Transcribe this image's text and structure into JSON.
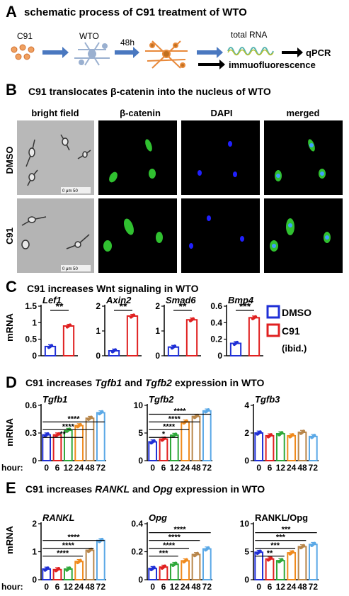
{
  "panelA": {
    "letter": "A",
    "title": "schematic process of C91 treatment of WTO",
    "c91": "C91",
    "wto": "WTO",
    "h48": "48h",
    "total_rna": "total RNA",
    "qpcr": "qPCR",
    "immuno": "immuofluorescence"
  },
  "panelB": {
    "letter": "B",
    "title_pre": "C91 translocates ",
    "title_beta": "β-catenin",
    "title_post": " into the nucleus of WTO",
    "cols": [
      "bright field",
      "β-catenin",
      "DAPI",
      "merged"
    ],
    "rows": [
      "DMSO",
      "C91"
    ],
    "scale": "0    μm    50"
  },
  "panelC": {
    "letter": "C",
    "title": "C91 increases Wnt signaling in WTO",
    "ylabel": "mRNA",
    "legend": [
      "DMSO",
      "C91",
      "(ibid.)"
    ]
  },
  "panelD": {
    "letter": "D",
    "title_pre": "C91 increases ",
    "g1": "Tgfb1",
    "and": " and ",
    "g2": "Tgfb2",
    "title_post": " expression in WTO",
    "ylabel": "mRNA",
    "hour_label": "hour:"
  },
  "panelE": {
    "letter": "E",
    "title_pre": "C91 increases ",
    "g1": "RANKL",
    "and": " and ",
    "g2": "Opg",
    "title_post": " expression in WTO",
    "ylabel": "mRNA",
    "hour_label": "hour:"
  },
  "colors": {
    "dmso": "#1f2fd6",
    "c91": "#e02020",
    "h0": "#1f2fd6",
    "h6": "#e02020",
    "h12": "#2fa83a",
    "h24": "#f08a1c",
    "h48": "#b8864a",
    "h72": "#5aa8e6"
  },
  "chart_data": [
    {
      "id": "C1",
      "type": "bar",
      "title": "Lef1",
      "categories": [
        "DMSO",
        "C91"
      ],
      "values": [
        0.28,
        0.9
      ],
      "ylim": [
        0,
        1.5
      ],
      "yticks": [
        0,
        0.5,
        1.0,
        1.5
      ],
      "sig": "**"
    },
    {
      "id": "C2",
      "type": "bar",
      "title": "Axin2",
      "categories": [
        "DMSO",
        "C91"
      ],
      "values": [
        0.2,
        1.6
      ],
      "ylim": [
        0,
        2
      ],
      "yticks": [
        0,
        1,
        2
      ],
      "sig": "**"
    },
    {
      "id": "C3",
      "type": "bar",
      "title": "Smad6",
      "categories": [
        "DMSO",
        "C91"
      ],
      "values": [
        0.35,
        1.45
      ],
      "ylim": [
        0,
        2
      ],
      "yticks": [
        0,
        1,
        2
      ],
      "sig": "**"
    },
    {
      "id": "C4",
      "type": "bar",
      "title": "Bmp4",
      "categories": [
        "DMSO",
        "C91"
      ],
      "values": [
        0.15,
        0.46
      ],
      "ylim": [
        0,
        0.6
      ],
      "yticks": [
        0,
        0.2,
        0.4,
        0.6
      ],
      "sig": "***"
    },
    {
      "id": "D1",
      "type": "bar",
      "title": "Tgfb1",
      "categories": [
        "0",
        "6",
        "12",
        "24",
        "48",
        "72"
      ],
      "values": [
        0.28,
        0.28,
        0.33,
        0.38,
        0.46,
        0.52
      ],
      "ylim": [
        0,
        0.6
      ],
      "yticks": [
        0,
        0.3,
        0.6
      ],
      "sig": [
        "**",
        "****",
        "****"
      ]
    },
    {
      "id": "D2",
      "type": "bar",
      "title": "Tgfb2",
      "categories": [
        "0",
        "6",
        "12",
        "24",
        "48",
        "72"
      ],
      "values": [
        3.4,
        3.9,
        4.6,
        7.0,
        8.0,
        9.0
      ],
      "ylim": [
        0,
        10
      ],
      "yticks": [
        0,
        5,
        10
      ],
      "sig": [
        "*",
        "****",
        "****",
        "****"
      ]
    },
    {
      "id": "D3",
      "type": "bar",
      "title": "Tgfb3",
      "categories": [
        "0",
        "6",
        "12",
        "24",
        "48",
        "72"
      ],
      "values": [
        2.0,
        1.8,
        1.95,
        1.8,
        2.05,
        1.75
      ],
      "ylim": [
        0,
        4
      ],
      "yticks": [
        0,
        2,
        4
      ],
      "sig": []
    },
    {
      "id": "E1",
      "type": "bar",
      "title": "RANKL",
      "categories": [
        "0",
        "6",
        "12",
        "24",
        "48",
        "72"
      ],
      "values": [
        0.38,
        0.36,
        0.38,
        0.65,
        1.05,
        1.4
      ],
      "ylim": [
        0,
        2
      ],
      "yticks": [
        0,
        1,
        2
      ],
      "sig": [
        "****",
        "****",
        "****"
      ]
    },
    {
      "id": "E2",
      "type": "bar",
      "title": "Opg",
      "categories": [
        "0",
        "6",
        "12",
        "24",
        "48",
        "72"
      ],
      "values": [
        0.08,
        0.09,
        0.11,
        0.135,
        0.18,
        0.22
      ],
      "ylim": [
        0,
        0.4
      ],
      "yticks": [
        0,
        0.2,
        0.4
      ],
      "sig": [
        "***",
        "****",
        "****",
        "****"
      ]
    },
    {
      "id": "E3",
      "type": "bar",
      "title": "RANKL/Opg",
      "categories": [
        "0",
        "6",
        "12",
        "24",
        "48",
        "72"
      ],
      "values": [
        4.9,
        3.7,
        3.4,
        4.8,
        5.9,
        6.3
      ],
      "ylim": [
        0,
        10
      ],
      "yticks": [
        0,
        5,
        10
      ],
      "sig": [
        "**",
        "***",
        "***",
        "***"
      ]
    }
  ]
}
